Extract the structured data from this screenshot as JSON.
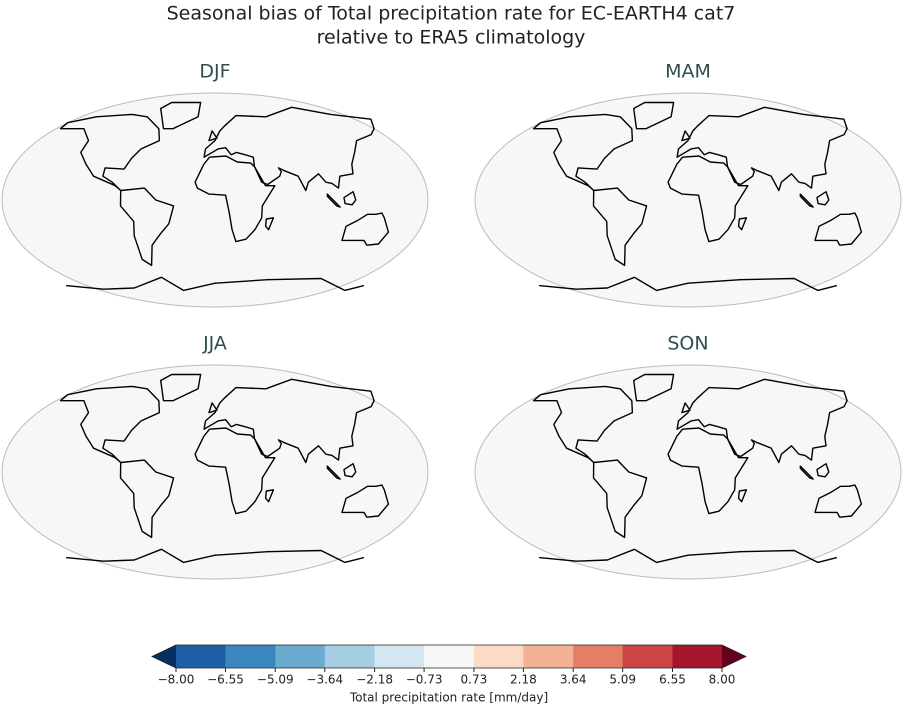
{
  "title": [
    "Seasonal bias of Total precipitation rate for EC-EARTH4 cat7",
    "relative to ERA5 climatology"
  ],
  "panels": [
    {
      "title": "DJF"
    },
    {
      "title": "MAM"
    },
    {
      "title": "JJA"
    },
    {
      "title": "SON"
    }
  ],
  "colorbar": {
    "label": "Total precipitation rate [mm/day]",
    "lim": [
      -8,
      8
    ],
    "ticks": [
      {
        "value": -8,
        "label": "−8.00"
      },
      {
        "value": -6.55,
        "label": "−6.55"
      },
      {
        "value": -5.09,
        "label": "−5.09"
      },
      {
        "value": -3.64,
        "label": "−3.64"
      },
      {
        "value": -2.18,
        "label": "−2.18"
      },
      {
        "value": -0.73,
        "label": "−0.73"
      },
      {
        "value": 0.73,
        "label": "0.73"
      },
      {
        "value": 2.18,
        "label": "2.18"
      },
      {
        "value": 3.64,
        "label": "3.64"
      },
      {
        "value": 5.09,
        "label": "5.09"
      },
      {
        "value": 6.55,
        "label": "6.55"
      },
      {
        "value": 8,
        "label": "8.00"
      }
    ],
    "colors": [
      "#1f5fa8",
      "#3a87c0",
      "#6aacd0",
      "#a6cde2",
      "#d4e6f1",
      "#f7f7f7",
      "#fbdac6",
      "#f4b193",
      "#e57e67",
      "#cc4545",
      "#a3162c"
    ],
    "under_color": "#053061",
    "over_color": "#67001f"
  }
}
